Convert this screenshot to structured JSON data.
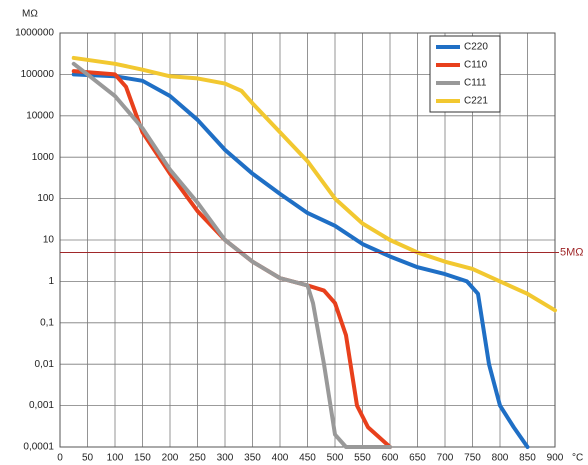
{
  "chart_data": {
    "type": "line",
    "y_label": "MΩ",
    "x_label": "°C",
    "log_y": true,
    "grid": true,
    "legend": "top-right",
    "xlim": [
      0,
      900
    ],
    "xticks": [
      0,
      50,
      100,
      150,
      200,
      250,
      300,
      350,
      400,
      450,
      500,
      550,
      600,
      650,
      700,
      750,
      800,
      850,
      900
    ],
    "ylim": [
      0.0001,
      1000000
    ],
    "yticks": [
      {
        "value": 0.0001,
        "label": "0,0001"
      },
      {
        "value": 0.001,
        "label": "0,001"
      },
      {
        "value": 0.01,
        "label": "0,01"
      },
      {
        "value": 0.1,
        "label": "0,1"
      },
      1,
      10,
      100,
      1000,
      10000,
      100000,
      1000000
    ],
    "reference_line": {
      "value": 5,
      "label": "5MΩ",
      "color": "#a0282a"
    },
    "series": [
      {
        "name": "C220",
        "color": "#1f6fc5",
        "x": [
          25,
          100,
          150,
          200,
          250,
          300,
          350,
          400,
          450,
          500,
          550,
          600,
          650,
          700,
          740,
          760,
          780,
          800,
          825,
          850
        ],
        "values": [
          100000,
          90000,
          70000,
          30000,
          8000,
          1500,
          400,
          130,
          45,
          22,
          8,
          4,
          2.2,
          1.5,
          1,
          0.5,
          0.01,
          0.001,
          0.0003,
          0.0001
        ]
      },
      {
        "name": "C110",
        "color": "#e8401c",
        "x": [
          25,
          100,
          120,
          150,
          200,
          250,
          300,
          350,
          400,
          450,
          480,
          500,
          520,
          540,
          560,
          600
        ],
        "values": [
          120000,
          100000,
          50000,
          4000,
          400,
          50,
          10,
          3,
          1.2,
          0.8,
          0.6,
          0.3,
          0.05,
          0.001,
          0.0003,
          0.0001
        ]
      },
      {
        "name": "C111",
        "color": "#999999",
        "x": [
          25,
          50,
          100,
          150,
          200,
          250,
          300,
          350,
          400,
          450,
          460,
          480,
          500,
          520,
          600
        ],
        "values": [
          180000,
          100000,
          30000,
          5000,
          500,
          80,
          10,
          3,
          1.2,
          0.8,
          0.3,
          0.01,
          0.0002,
          0.0001,
          0.0001
        ]
      },
      {
        "name": "C221",
        "color": "#f2c830",
        "x": [
          25,
          100,
          150,
          200,
          250,
          300,
          330,
          350,
          400,
          450,
          500,
          550,
          600,
          650,
          700,
          750,
          800,
          850,
          900
        ],
        "values": [
          250000,
          180000,
          130000,
          90000,
          80000,
          60000,
          40000,
          20000,
          4000,
          800,
          100,
          25,
          10,
          5,
          3,
          2,
          1,
          0.5,
          0.2
        ]
      }
    ]
  }
}
